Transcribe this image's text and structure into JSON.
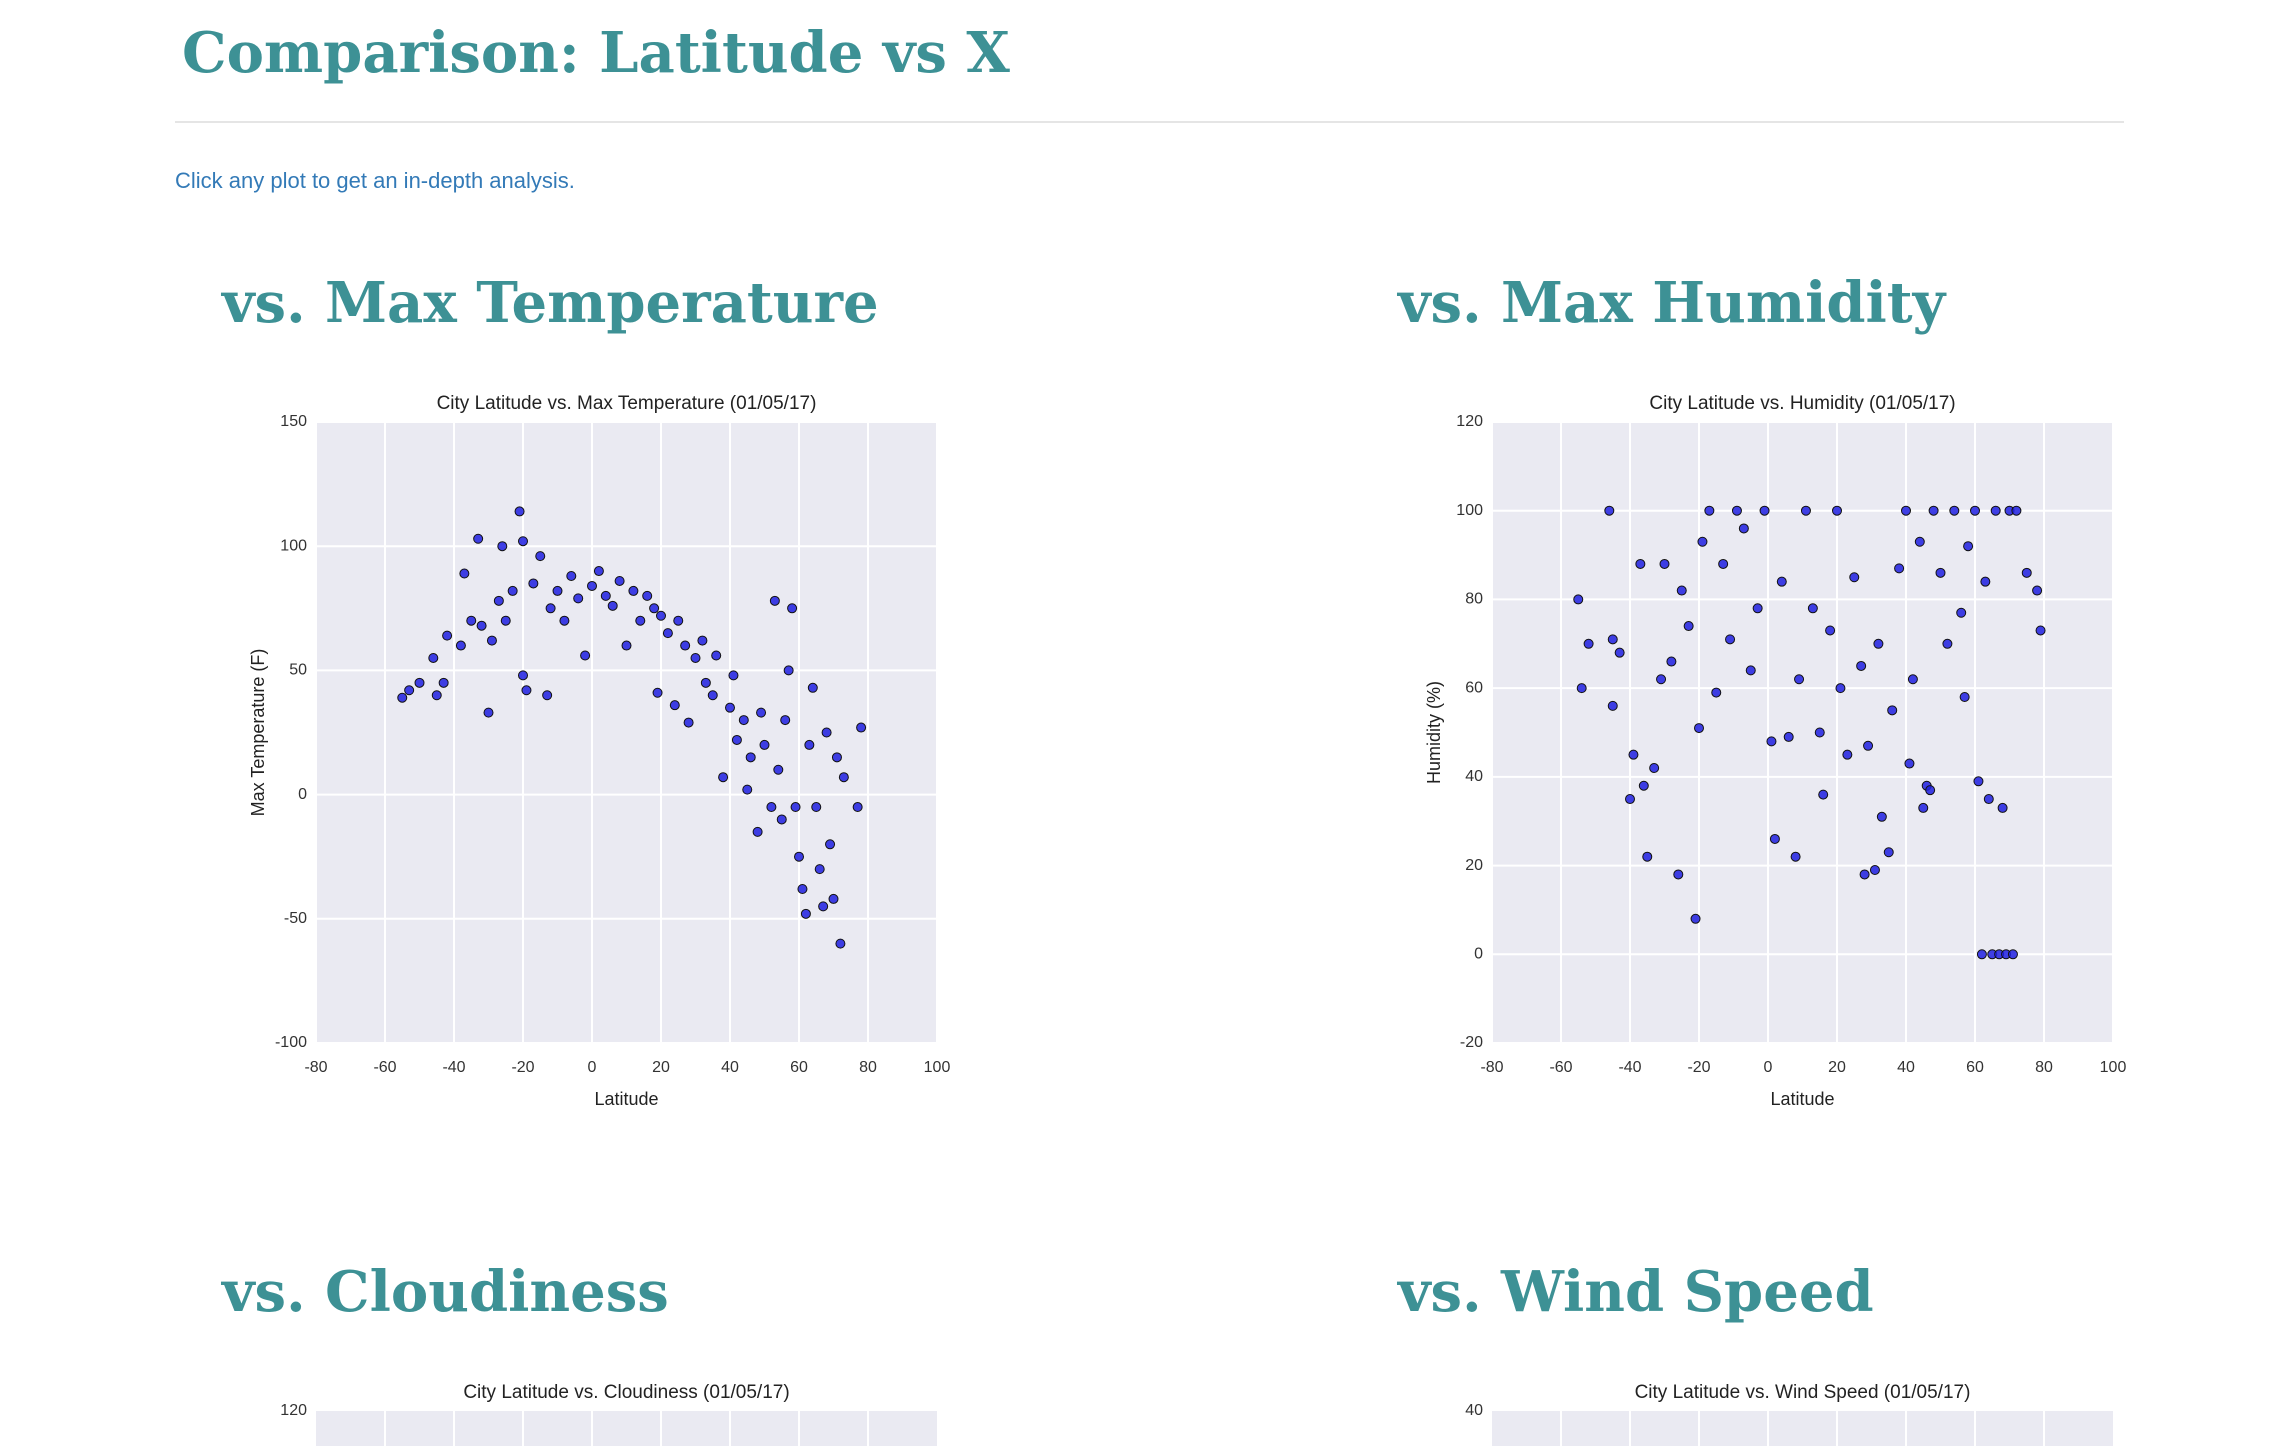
{
  "header": {
    "title": "Comparison: Latitude vs X"
  },
  "instructions": "Click any plot to get an in-depth analysis.",
  "sections": [
    {
      "heading": "vs. Max Temperature",
      "chart": {
        "type": "scatter",
        "title": "City Latitude vs. Max Temperature (01/05/17)",
        "x_label": "Latitude",
        "y_label": "Max Temperature (F)",
        "color": "#1f1fe0",
        "x": [
          -55,
          -53,
          -50,
          -46,
          -45,
          -43,
          -42,
          -38,
          -37,
          -35,
          -33,
          -32,
          -30,
          -29,
          -27,
          -26,
          -25,
          -23,
          -21,
          -20,
          -20,
          -19,
          -17,
          -15,
          -13,
          -12,
          -10,
          -8,
          -6,
          -4,
          -2,
          0,
          2,
          4,
          6,
          8,
          10,
          12,
          14,
          16,
          18,
          19,
          20,
          22,
          24,
          25,
          27,
          28,
          30,
          32,
          33,
          35,
          36,
          38,
          40,
          41,
          42,
          44,
          45,
          46,
          48,
          49,
          50,
          52,
          53,
          54,
          55,
          56,
          57,
          58,
          59,
          60,
          61,
          62,
          63,
          64,
          65,
          66,
          67,
          68,
          69,
          70,
          71,
          72,
          73,
          77,
          78
        ],
        "values": [
          39,
          42,
          45,
          55,
          40,
          45,
          64,
          60,
          89,
          70,
          103,
          68,
          33,
          62,
          78,
          100,
          70,
          82,
          114,
          102,
          48,
          42,
          85,
          96,
          40,
          75,
          82,
          70,
          88,
          79,
          56,
          84,
          90,
          80,
          76,
          86,
          60,
          82,
          70,
          80,
          75,
          41,
          72,
          65,
          36,
          70,
          60,
          29,
          55,
          62,
          45,
          40,
          56,
          7,
          35,
          48,
          22,
          30,
          2,
          15,
          -15,
          33,
          20,
          -5,
          78,
          10,
          -10,
          30,
          50,
          75,
          -5,
          -25,
          -38,
          -48,
          20,
          43,
          -5,
          -30,
          -45,
          25,
          -20,
          -42,
          15,
          -60,
          7,
          -5,
          27
        ],
        "xlim": [
          -80,
          100
        ],
        "xticks": [
          -80,
          -60,
          -40,
          -20,
          0,
          20,
          40,
          60,
          80,
          100
        ],
        "ylim": [
          -100,
          150
        ],
        "yticks": [
          -100,
          -50,
          0,
          50,
          100,
          150
        ],
        "grid": true
      }
    },
    {
      "heading": "vs. Max Humidity",
      "chart": {
        "type": "scatter",
        "title": "City Latitude vs. Humidity (01/05/17)",
        "x_label": "Latitude",
        "y_label": "Humidity (%)",
        "color": "#1f1fe0",
        "x": [
          -55,
          -54,
          -52,
          -46,
          -45,
          -45,
          -43,
          -40,
          -39,
          -37,
          -36,
          -35,
          -33,
          -31,
          -30,
          -28,
          -26,
          -25,
          -23,
          -21,
          -20,
          -19,
          -17,
          -15,
          -13,
          -11,
          -9,
          -7,
          -5,
          -3,
          -1,
          1,
          2,
          4,
          6,
          8,
          9,
          11,
          13,
          15,
          16,
          18,
          20,
          21,
          23,
          25,
          27,
          28,
          29,
          31,
          32,
          33,
          35,
          36,
          38,
          40,
          41,
          42,
          44,
          45,
          46,
          47,
          48,
          50,
          52,
          54,
          56,
          57,
          58,
          60,
          61,
          62,
          63,
          64,
          65,
          66,
          67,
          68,
          69,
          70,
          71,
          72,
          75,
          78,
          79
        ],
        "values": [
          80,
          60,
          70,
          100,
          71,
          56,
          68,
          35,
          45,
          88,
          38,
          22,
          42,
          62,
          88,
          66,
          18,
          82,
          74,
          8,
          51,
          93,
          100,
          59,
          88,
          71,
          100,
          96,
          64,
          78,
          100,
          48,
          26,
          84,
          49,
          22,
          62,
          100,
          78,
          50,
          36,
          73,
          100,
          60,
          45,
          85,
          65,
          18,
          47,
          19,
          70,
          31,
          23,
          55,
          87,
          100,
          43,
          62,
          93,
          33,
          38,
          37,
          100,
          86,
          70,
          100,
          77,
          58,
          92,
          100,
          39,
          0,
          84,
          35,
          0,
          100,
          0,
          33,
          0,
          100,
          0,
          100,
          86,
          82,
          73
        ],
        "xlim": [
          -80,
          100
        ],
        "xticks": [
          -80,
          -60,
          -40,
          -20,
          0,
          20,
          40,
          60,
          80,
          100
        ],
        "ylim": [
          -20,
          120
        ],
        "yticks": [
          -20,
          0,
          20,
          40,
          60,
          80,
          100,
          120
        ],
        "grid": true
      }
    },
    {
      "heading": "vs. Cloudiness",
      "chart": {
        "type": "scatter-cut",
        "title": "City Latitude vs. Cloudiness (01/05/17)",
        "yticks": [
          120
        ]
      }
    },
    {
      "heading": "vs. Wind Speed",
      "chart": {
        "type": "scatter-cut",
        "title": "City Latitude vs. Wind Speed (01/05/17)",
        "yticks": [
          40
        ]
      }
    }
  ]
}
